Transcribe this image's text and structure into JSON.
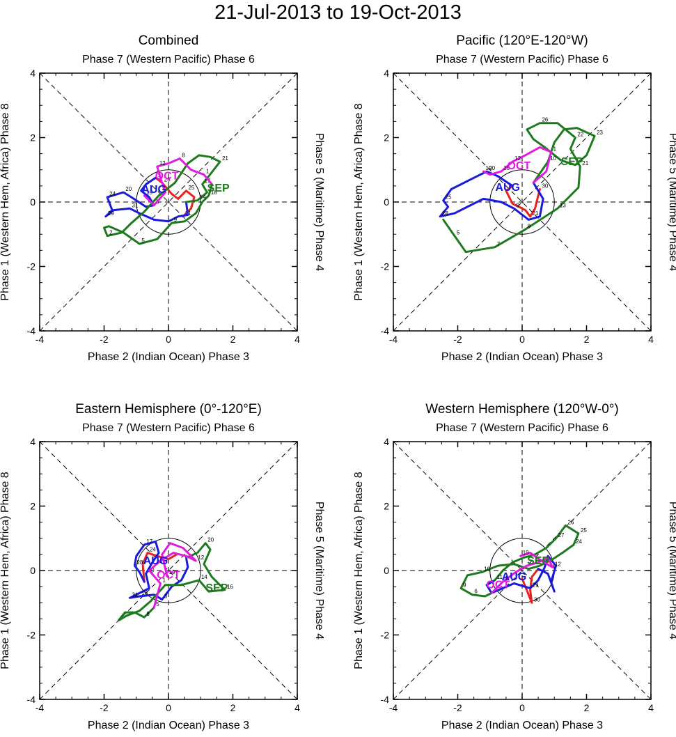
{
  "page": {
    "title": "21-Jul-2013 to 19-Oct-2013"
  },
  "colors": {
    "jul": "#e8231c",
    "aug": "#1a1adb",
    "sep": "#1f7a1f",
    "oct": "#e01ce0",
    "axis": "#000000"
  },
  "axis_labels": {
    "top": "Phase 7 (Western Pacific) Phase 6",
    "bottom": "Phase 2 (Indian Ocean) Phase 3",
    "left": "Phase 1 (Western Hem, Africa) Phase 8",
    "right": "Phase 5 (Maritime) Phase 4"
  },
  "chart_data": [
    {
      "type": "line",
      "title": "Combined",
      "xlim": [
        -4,
        4
      ],
      "ylim": [
        -4,
        4
      ],
      "xticks": [
        -4,
        -2,
        0,
        2,
        4
      ],
      "yticks": [
        -4,
        -2,
        0,
        2,
        4
      ],
      "month_labels": [
        {
          "text": "AUG",
          "x": -0.45,
          "y": 0.28,
          "color": "aug"
        },
        {
          "text": "SEP",
          "x": 1.55,
          "y": 0.32,
          "color": "sep"
        },
        {
          "text": "OCT",
          "x": -0.05,
          "y": 0.7,
          "color": "oct"
        }
      ],
      "series": [
        {
          "name": "Jul",
          "color": "jul",
          "x": [
            0.45,
            0.7,
            0.8,
            0.55,
            0.3,
            0.1,
            -0.2,
            -0.4
          ],
          "y": [
            -0.45,
            -0.2,
            0.15,
            0.35,
            0.1,
            0.25,
            0.6,
            0.75
          ],
          "labels": [
            {
              "t": "21",
              "i": 0
            },
            {
              "t": "25",
              "i": 3
            },
            {
              "t": "28",
              "i": 6
            }
          ]
        },
        {
          "name": "Aug",
          "color": "aug",
          "x": [
            -0.4,
            -0.7,
            -0.85,
            -0.6,
            -0.45,
            -0.7,
            -1.15,
            -1.4,
            -1.9,
            -1.75,
            -1.95,
            -1.7,
            -1.2,
            -0.9,
            -0.45,
            0.0,
            0.3,
            0.6,
            0.55
          ],
          "y": [
            0.75,
            0.55,
            0.35,
            0.15,
            -0.1,
            -0.15,
            0.15,
            0.3,
            0.15,
            -0.25,
            -0.45,
            -0.25,
            -0.2,
            -0.35,
            -0.55,
            -0.6,
            -0.45,
            -0.4,
            0.0
          ],
          "labels": [
            {
              "t": "1",
              "i": 0
            },
            {
              "t": "5",
              "i": 4
            },
            {
              "t": "20",
              "i": 7
            },
            {
              "t": "24",
              "i": 8
            },
            {
              "t": "29",
              "i": 10
            },
            {
              "t": "31",
              "i": 12
            }
          ]
        },
        {
          "name": "Sep",
          "color": "sep",
          "x": [
            0.55,
            0.9,
            1.2,
            1.05,
            1.25,
            1.6,
            1.3,
            0.95,
            0.6,
            0.2,
            -0.3,
            -0.75,
            -1.15,
            -1.45,
            -1.9,
            -2.0,
            -1.85,
            -1.4,
            -0.9,
            -0.35,
            0.1,
            0.5,
            0.85,
            1.05,
            1.25,
            1.35
          ],
          "y": [
            0.0,
            0.05,
            0.3,
            0.55,
            0.8,
            1.25,
            1.4,
            1.45,
            1.2,
            0.6,
            0.2,
            -0.3,
            -0.65,
            -0.95,
            -1.05,
            -0.8,
            -0.75,
            -0.95,
            -1.3,
            -1.15,
            -0.65,
            -0.6,
            -0.35,
            0.0,
            0.2,
            0.55
          ],
          "labels": [
            {
              "t": "14",
              "i": 1
            },
            {
              "t": "17",
              "i": 3
            },
            {
              "t": "21",
              "i": 5
            },
            {
              "t": "2",
              "i": 14
            },
            {
              "t": "5",
              "i": 18
            },
            {
              "t": "9",
              "i": 20
            },
            {
              "t": "18",
              "i": 24
            }
          ]
        },
        {
          "name": "Oct",
          "color": "oct",
          "x": [
            1.35,
            1.1,
            0.7,
            0.35,
            0.0,
            -0.35,
            -0.25,
            -0.1,
            -0.45,
            -0.75
          ],
          "y": [
            0.55,
            0.85,
            1.0,
            1.35,
            1.2,
            1.1,
            0.75,
            0.3,
            -0.1,
            0.2
          ],
          "labels": [
            {
              "t": "1",
              "i": 1
            },
            {
              "t": "8",
              "i": 3
            },
            {
              "t": "12",
              "i": 5
            },
            {
              "t": "19",
              "i": 9
            }
          ]
        }
      ]
    },
    {
      "type": "line",
      "title": "Pacific (120°E-120°W)",
      "xlim": [
        -4,
        4
      ],
      "ylim": [
        -4,
        4
      ],
      "xticks": [
        -4,
        -2,
        0,
        2,
        4
      ],
      "yticks": [
        -4,
        -2,
        0,
        2,
        4
      ],
      "month_labels": [
        {
          "text": "AUG",
          "x": -0.45,
          "y": 0.35,
          "color": "aug"
        },
        {
          "text": "SEP",
          "x": 1.55,
          "y": 1.15,
          "color": "sep"
        },
        {
          "text": "OCT",
          "x": -0.1,
          "y": 1.02,
          "color": "oct"
        }
      ],
      "series": [
        {
          "name": "Jul",
          "color": "jul",
          "x": [
            0.55,
            0.4,
            0.25,
            0.1,
            -0.3,
            -0.5,
            -0.3
          ],
          "y": [
            0.4,
            -0.2,
            -0.45,
            -0.25,
            -0.05,
            0.35,
            0.5
          ],
          "labels": [
            {
              "t": "30",
              "i": 0
            },
            {
              "t": "21",
              "i": 2
            }
          ]
        },
        {
          "name": "Aug",
          "color": "aug",
          "x": [
            -0.3,
            -0.75,
            -1.1,
            -1.5,
            -1.9,
            -2.2,
            -2.45,
            -2.3,
            -2.55,
            -2.1,
            -1.7,
            -1.2,
            -0.65,
            -0.25,
            0.2,
            0.55,
            0.65,
            0.35
          ],
          "y": [
            0.5,
            0.8,
            0.95,
            0.75,
            0.55,
            0.4,
            0.05,
            -0.15,
            -0.45,
            -0.35,
            -0.15,
            0.1,
            0.0,
            -0.2,
            -0.55,
            -0.45,
            0.1,
            0.6
          ],
          "labels": [
            {
              "t": "20",
              "i": 2
            },
            {
              "t": "25",
              "i": 6
            },
            {
              "t": "28",
              "i": 8
            },
            {
              "t": "9",
              "i": 13
            }
          ]
        },
        {
          "name": "Sep",
          "color": "sep",
          "x": [
            0.35,
            0.8,
            1.0,
            1.3,
            1.7,
            2.25,
            2.0,
            1.65,
            1.2,
            0.7,
            0.35,
            0.15,
            0.55,
            1.1,
            1.65,
            1.5,
            1.8,
            1.75,
            1.1,
            0.1,
            -0.85,
            -1.75,
            -2.1,
            -2.45
          ],
          "y": [
            0.6,
            1.25,
            1.85,
            2.25,
            2.3,
            2.05,
            1.45,
            1.15,
            1.3,
            1.7,
            1.95,
            2.25,
            2.45,
            2.45,
            2.0,
            1.65,
            1.1,
            0.45,
            -0.2,
            -0.85,
            -1.4,
            -1.55,
            -1.05,
            -0.55
          ],
          "labels": [
            {
              "t": "10",
              "i": 1
            },
            {
              "t": "23",
              "i": 5
            },
            {
              "t": "26",
              "i": 12
            },
            {
              "t": "22",
              "i": 14
            },
            {
              "t": "21",
              "i": 16
            },
            {
              "t": "13",
              "i": 18
            },
            {
              "t": "8",
              "i": 19
            },
            {
              "t": "7",
              "i": 20
            },
            {
              "t": "5",
              "i": 22
            }
          ]
        },
        {
          "name": "Oct",
          "color": "oct",
          "x": [
            0.35,
            0.75,
            0.9,
            0.55,
            0.1,
            -0.3,
            -0.65,
            -1.0,
            -1.2
          ],
          "y": [
            0.6,
            0.95,
            1.55,
            1.7,
            1.45,
            1.25,
            0.95,
            0.85,
            0.95
          ],
          "labels": [
            {
              "t": "1",
              "i": 2
            },
            {
              "t": "12",
              "i": 5
            },
            {
              "t": "16",
              "i": 6
            },
            {
              "t": "19",
              "i": 8
            }
          ]
        }
      ]
    },
    {
      "type": "line",
      "title": "Eastern Hemisphere (0°-120°E)",
      "xlim": [
        -4,
        4
      ],
      "ylim": [
        -4,
        4
      ],
      "xticks": [
        -4,
        -2,
        0,
        2,
        4
      ],
      "yticks": [
        -4,
        -2,
        0,
        2,
        4
      ],
      "month_labels": [
        {
          "text": "AUG",
          "x": -0.4,
          "y": 0.2,
          "color": "aug"
        },
        {
          "text": "SEP",
          "x": 1.5,
          "y": -0.65,
          "color": "sep"
        },
        {
          "text": "OCT",
          "x": 0.0,
          "y": -0.25,
          "color": "oct"
        }
      ],
      "series": [
        {
          "name": "Jul",
          "color": "jul",
          "x": [
            0.25,
            0.0,
            -0.35,
            -0.65,
            -0.8,
            -0.75
          ],
          "y": [
            0.5,
            0.35,
            0.45,
            0.55,
            0.2,
            -0.35
          ],
          "labels": [
            {
              "t": "24",
              "i": 3
            }
          ]
        },
        {
          "name": "Aug",
          "color": "aug",
          "x": [
            -0.75,
            -0.9,
            -1.05,
            -1.0,
            -0.75,
            -0.4,
            -0.3,
            -0.5,
            -0.7,
            -0.6,
            -0.9,
            -1.2,
            -0.9,
            -0.45,
            -0.2,
            0.1,
            0.4,
            0.6,
            0.55
          ],
          "y": [
            -0.35,
            -0.05,
            0.15,
            0.45,
            0.8,
            0.9,
            0.55,
            0.25,
            -0.1,
            -0.55,
            -0.7,
            -0.85,
            -0.8,
            -0.75,
            -0.9,
            -0.5,
            -0.3,
            0.1,
            0.4
          ],
          "labels": [
            {
              "t": "17",
              "i": 4
            },
            {
              "t": "28",
              "i": 2
            },
            {
              "t": "30",
              "i": 8
            },
            {
              "t": "31",
              "i": 11
            },
            {
              "t": "3",
              "i": 14
            },
            {
              "t": "16",
              "i": 12
            }
          ]
        },
        {
          "name": "Sep",
          "color": "sep",
          "x": [
            0.55,
            0.9,
            1.15,
            1.3,
            1.1,
            1.35,
            1.75,
            1.25,
            0.95,
            0.4,
            -0.1,
            -0.55,
            -0.9,
            -1.3,
            -1.55,
            -1.35,
            -1.05,
            -0.75,
            -0.45
          ],
          "y": [
            0.4,
            0.55,
            0.85,
            0.65,
            0.2,
            -0.2,
            -0.6,
            -0.65,
            -0.3,
            -0.45,
            -0.45,
            -0.95,
            -1.25,
            -1.4,
            -1.55,
            -1.3,
            -1.3,
            -1.45,
            -1.15
          ],
          "labels": [
            {
              "t": "20",
              "i": 2
            },
            {
              "t": "14",
              "i": 8
            },
            {
              "t": "16",
              "i": 6
            },
            {
              "t": "8",
              "i": 17
            },
            {
              "t": "5",
              "i": 18
            }
          ]
        },
        {
          "name": "Oct",
          "color": "oct",
          "x": [
            -0.45,
            -0.25,
            -0.6,
            -0.25,
            0.15,
            0.55,
            0.85,
            0.45,
            0.05,
            -0.2,
            -0.05
          ],
          "y": [
            -1.15,
            -0.4,
            0.0,
            0.3,
            0.55,
            0.45,
            0.3,
            0.7,
            0.85,
            0.5,
            -0.15
          ],
          "labels": [
            {
              "t": "1",
              "i": 1
            },
            {
              "t": "12",
              "i": 6
            },
            {
              "t": "19",
              "i": 10
            }
          ]
        }
      ]
    },
    {
      "type": "line",
      "title": "Western Hemisphere (120°W-0°)",
      "xlim": [
        -4,
        4
      ],
      "ylim": [
        -4,
        4
      ],
      "xticks": [
        -4,
        -2,
        0,
        2,
        4
      ],
      "yticks": [
        -4,
        -2,
        0,
        2,
        4
      ],
      "month_labels": [
        {
          "text": "AUG",
          "x": -0.25,
          "y": -0.3,
          "color": "aug"
        },
        {
          "text": "SEP",
          "x": 0.5,
          "y": 0.2,
          "color": "sep"
        },
        {
          "text": "OCT",
          "x": -0.75,
          "y": -0.55,
          "color": "oct"
        }
      ],
      "series": [
        {
          "name": "Jul",
          "color": "jul",
          "x": [
            0.5,
            0.3,
            0.25,
            0.3,
            0.0
          ],
          "y": [
            0.05,
            -0.2,
            -0.6,
            -1.0,
            -0.25
          ],
          "labels": [
            {
              "t": "30",
              "i": 3
            }
          ]
        },
        {
          "name": "Aug",
          "color": "aug",
          "x": [
            0.5,
            0.8,
            1.0,
            0.9,
            1.05,
            0.8,
            0.7,
            0.5,
            0.25,
            -0.25,
            -0.6,
            -0.95,
            -1.1,
            -0.85
          ],
          "y": [
            0.05,
            -0.1,
            -0.65,
            -0.35,
            0.15,
            0.45,
            0.1,
            -0.3,
            -0.55,
            -0.4,
            -0.55,
            -0.7,
            -0.45,
            -0.3
          ],
          "labels": [
            {
              "t": "29",
              "i": 8
            }
          ]
        },
        {
          "name": "Sep",
          "color": "sep",
          "x": [
            -0.85,
            -0.6,
            -0.3,
            0.05,
            0.4,
            0.75,
            1.05,
            1.35,
            1.75,
            1.6,
            1.25,
            0.95,
            0.55,
            0.2,
            -0.25,
            -0.75,
            -1.25,
            -1.7,
            -1.9,
            -1.55,
            -1.15,
            -0.95
          ],
          "y": [
            -0.3,
            0.0,
            0.25,
            0.4,
            0.5,
            0.7,
            1.0,
            1.4,
            1.15,
            0.8,
            0.55,
            0.35,
            0.15,
            0.05,
            0.2,
            0.15,
            -0.05,
            -0.15,
            -0.55,
            -0.75,
            -0.8,
            -0.7
          ],
          "labels": [
            {
              "t": "11",
              "i": 0
            },
            {
              "t": "27",
              "i": 6
            },
            {
              "t": "26",
              "i": 7
            },
            {
              "t": "25",
              "i": 8
            },
            {
              "t": "24",
              "i": 9
            },
            {
              "t": "10",
              "i": 16
            },
            {
              "t": "9",
              "i": 18
            },
            {
              "t": "6",
              "i": 19
            }
          ]
        },
        {
          "name": "Oct",
          "color": "oct",
          "x": [
            -0.95,
            -0.6,
            -0.2,
            0.15,
            0.5,
            0.8,
            0.95,
            0.6,
            0.25,
            -0.05
          ],
          "y": [
            -0.7,
            -0.35,
            -0.05,
            0.15,
            0.25,
            0.4,
            0.1,
            0.3,
            0.55,
            0.45
          ],
          "labels": [
            {
              "t": "1",
              "i": 1
            },
            {
              "t": "12",
              "i": 6
            },
            {
              "t": "19",
              "i": 9
            }
          ]
        }
      ]
    }
  ]
}
